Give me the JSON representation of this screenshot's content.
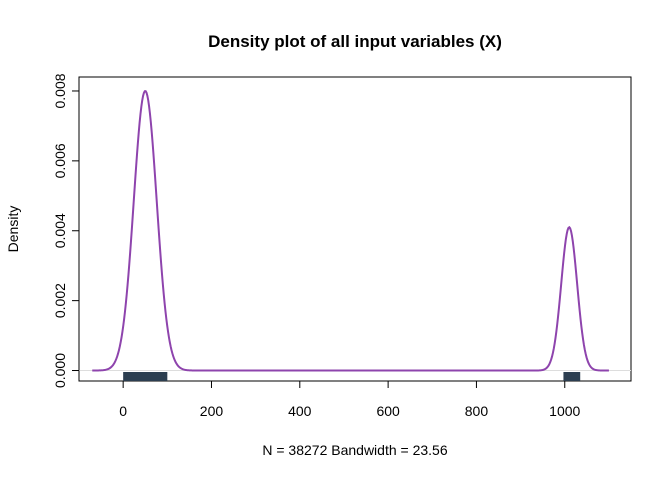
{
  "chart_data": {
    "type": "area",
    "title": "Density plot of all input variables (X)",
    "xlabel": "N = 38272   Bandwidth = 23.56",
    "ylabel": "Density",
    "xlim": [
      -100,
      1150
    ],
    "ylim": [
      -0.0003,
      0.0084
    ],
    "x_ticks": [
      0,
      200,
      400,
      600,
      800,
      1000
    ],
    "y_ticks": [
      0.0,
      0.002,
      0.004,
      0.006,
      0.008
    ],
    "y_tick_labels": [
      "0.000",
      "0.002",
      "0.004",
      "0.006",
      "0.008"
    ],
    "grid": false,
    "series": [
      {
        "color": "#8e44ad",
        "peaks": [
          {
            "center": 50,
            "height": 0.008,
            "sd": 26
          },
          {
            "center": 1010,
            "height": 0.0041,
            "sd": 18
          }
        ],
        "x_range": [
          -70,
          1100
        ]
      }
    ],
    "rug": {
      "color": "#2c3e50",
      "segments": [
        [
          0,
          100
        ],
        [
          997,
          1035
        ]
      ]
    }
  }
}
